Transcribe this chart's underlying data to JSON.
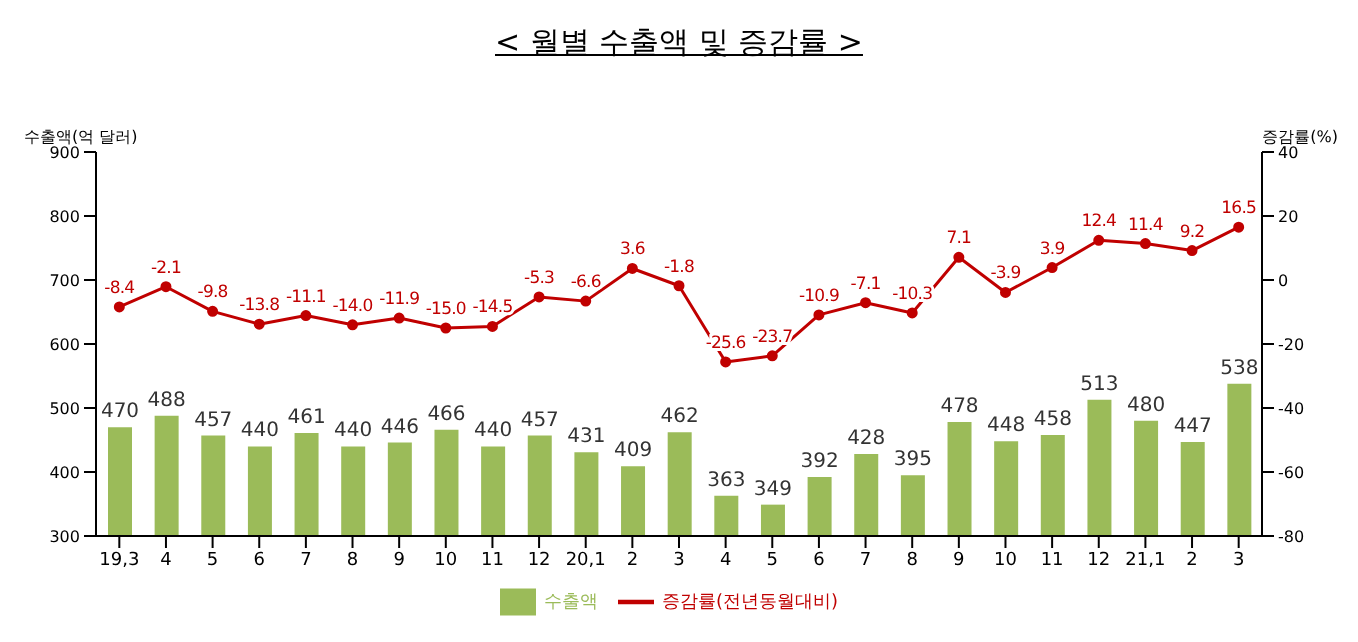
{
  "chart_data": {
    "type": "bar",
    "title": "< 월별 수출액 및 증감률 >",
    "ylabel": "수출액(억 달러)",
    "y2label": "증감률(%)",
    "categories": [
      "19,3",
      "4",
      "5",
      "6",
      "7",
      "8",
      "9",
      "10",
      "11",
      "12",
      "20,1",
      "2",
      "3",
      "4",
      "5",
      "6",
      "7",
      "8",
      "9",
      "10",
      "11",
      "12",
      "21,1",
      "2",
      "3"
    ],
    "series": [
      {
        "name": "수출액",
        "color": "#9bbb59",
        "values": [
          470,
          488,
          457,
          440,
          461,
          440,
          446,
          466,
          440,
          457,
          431,
          409,
          462,
          363,
          349,
          392,
          428,
          395,
          478,
          448,
          458,
          513,
          480,
          447,
          538
        ],
        "value_labels": [
          "470",
          "488",
          "457",
          "440",
          "461",
          "440",
          "446",
          "466",
          "440",
          "457",
          "431",
          "409",
          "462",
          "363",
          "349",
          "392",
          "428",
          "395",
          "478",
          "448",
          "458",
          "513",
          "480",
          "447",
          "538"
        ]
      },
      {
        "name": "증감률(전년동월대비)",
        "type": "line",
        "axis": "y2",
        "color": "#c00000",
        "values": [
          -8.4,
          -2.1,
          -9.8,
          -13.8,
          -11.1,
          -14.0,
          -11.9,
          -15.0,
          -14.5,
          -5.3,
          -6.6,
          3.6,
          -1.8,
          -25.6,
          -23.7,
          -10.9,
          -7.1,
          -10.3,
          7.1,
          -3.9,
          3.9,
          12.4,
          11.4,
          9.2,
          16.5
        ],
        "value_labels": [
          "-8.4",
          "-2.1",
          "-9.8",
          "-13.8",
          "-11.1",
          "-14.0",
          "-11.9",
          "-15.0",
          "-14.5",
          "-5.3",
          "-6.6",
          "3.6",
          "-1.8",
          "-25.6",
          "-23.7",
          "-10.9",
          "-7.1",
          "-10.3",
          "7.1",
          "-3.9",
          "3.9",
          "12.4",
          "11.4",
          "9.2",
          "16.5"
        ]
      }
    ],
    "ylim": [
      300,
      900
    ],
    "yticks": [
      300,
      400,
      500,
      600,
      700,
      800,
      900
    ],
    "y2lim": [
      -80,
      40
    ],
    "y2ticks": [
      -80,
      -60,
      -40,
      -20,
      0,
      20,
      40
    ],
    "grid": false,
    "legend": "bottom",
    "marker": "circle",
    "line_style": "solid"
  }
}
